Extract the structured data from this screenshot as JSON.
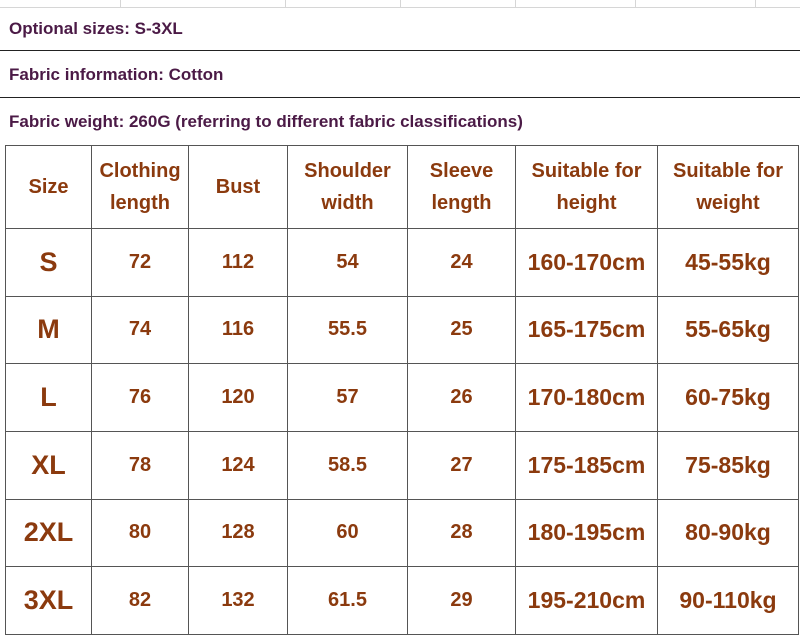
{
  "info_lines": [
    "Optional sizes: S-3XL",
    "Fabric information: Cotton",
    "Fabric weight: 260G (referring to different fabric classifications)"
  ],
  "table": {
    "headers": [
      "Size",
      "Clothing length",
      "Bust",
      "Shoulder width",
      "Sleeve length",
      "Suitable for height",
      "Suitable for weight"
    ],
    "rows": [
      [
        "S",
        "72",
        "112",
        "54",
        "24",
        "160-170cm",
        "45-55kg"
      ],
      [
        "M",
        "74",
        "116",
        "55.5",
        "25",
        "165-175cm",
        "55-65kg"
      ],
      [
        "L",
        "76",
        "120",
        "57",
        "26",
        "170-180cm",
        "60-75kg"
      ],
      [
        "XL",
        "78",
        "124",
        "58.5",
        "27",
        "175-185cm",
        "75-85kg"
      ],
      [
        "2XL",
        "80",
        "128",
        "60",
        "28",
        "180-195cm",
        "80-90kg"
      ],
      [
        "3XL",
        "82",
        "132",
        "61.5",
        "29",
        "195-210cm",
        "90-110kg"
      ]
    ]
  },
  "colors": {
    "info_text": "#4b1a46",
    "table_text": "#8b3a0e",
    "border": "#555555"
  }
}
